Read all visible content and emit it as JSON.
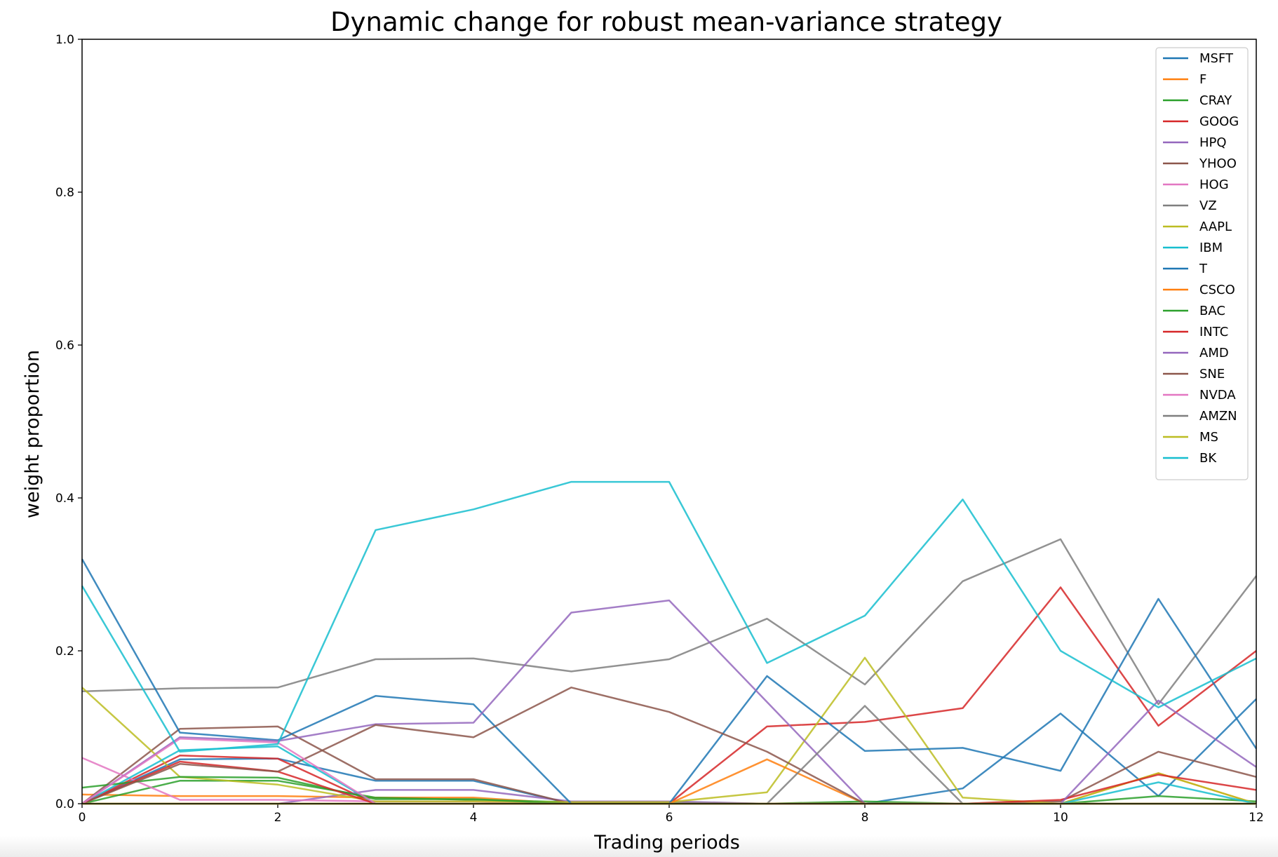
{
  "chart_data": {
    "type": "line",
    "title": "Dynamic change for robust mean-variance strategy",
    "xlabel": "Trading periods",
    "ylabel": "weight proportion",
    "xlim": [
      0,
      12
    ],
    "ylim": [
      0,
      1.0
    ],
    "xticks": [
      "0",
      "2",
      "4",
      "6",
      "8",
      "10",
      "12"
    ],
    "yticks": [
      "0.0",
      "0.2",
      "0.4",
      "0.6",
      "0.8",
      "1.0"
    ],
    "grid": false,
    "legend_position": "top-right",
    "x": [
      0,
      1,
      2,
      3,
      4,
      5,
      6,
      7,
      8,
      9,
      10,
      11,
      12
    ],
    "series": [
      {
        "name": "MSFT",
        "color": "#1f77b4",
        "values": [
          0.0,
          0.058,
          0.059,
          0.03,
          0.03,
          0.0,
          0.0,
          0.0,
          0.0,
          0.02,
          0.118,
          0.01,
          0.137
        ]
      },
      {
        "name": "F",
        "color": "#ff7f0e",
        "values": [
          0.012,
          0.01,
          0.01,
          0.008,
          0.008,
          0.0,
          0.0,
          0.0,
          0.0,
          0.0,
          0.0,
          0.04,
          0.0
        ]
      },
      {
        "name": "CRAY",
        "color": "#2ca02c",
        "values": [
          0.0,
          0.03,
          0.03,
          0.008,
          0.005,
          0.002,
          0.002,
          0.0,
          0.0,
          0.0,
          0.0,
          0.01,
          0.003
        ]
      },
      {
        "name": "GOOG",
        "color": "#d62728",
        "values": [
          0.0,
          0.063,
          0.059,
          0.0,
          0.0,
          0.0,
          0.0,
          0.101,
          0.107,
          0.125,
          0.283,
          0.102,
          0.2
        ]
      },
      {
        "name": "HPQ",
        "color": "#9467bd",
        "values": [
          0.0,
          0.0,
          0.0,
          0.018,
          0.018,
          0.003,
          0.003,
          0.0,
          0.0,
          0.0,
          0.0,
          0.0,
          0.0
        ]
      },
      {
        "name": "YHOO",
        "color": "#8c564b",
        "values": [
          0.0,
          0.098,
          0.101,
          0.032,
          0.032,
          0.0,
          0.0,
          0.0,
          0.0,
          0.0,
          0.003,
          0.068,
          0.035
        ]
      },
      {
        "name": "HOG",
        "color": "#e377c2",
        "values": [
          0.06,
          0.005,
          0.005,
          0.003,
          0.003,
          0.0,
          0.0,
          0.0,
          0.0,
          0.0,
          0.0,
          0.0,
          0.0
        ]
      },
      {
        "name": "VZ",
        "color": "#7f7f7f",
        "values": [
          0.147,
          0.151,
          0.152,
          0.189,
          0.19,
          0.173,
          0.189,
          0.242,
          0.156,
          0.291,
          0.346,
          0.13,
          0.298
        ]
      },
      {
        "name": "AAPL",
        "color": "#bcbd22",
        "values": [
          0.152,
          0.035,
          0.025,
          0.003,
          0.003,
          0.002,
          0.002,
          0.015,
          0.191,
          0.008,
          0.0,
          0.04,
          0.0
        ]
      },
      {
        "name": "IBM",
        "color": "#17becf",
        "values": [
          0.0,
          0.07,
          0.075,
          0.0,
          0.0,
          0.0,
          0.0,
          0.0,
          0.0,
          0.0,
          0.0,
          0.028,
          0.0
        ]
      },
      {
        "name": "T",
        "color": "#1f77b4",
        "values": [
          0.32,
          0.093,
          0.083,
          0.141,
          0.13,
          0.0,
          0.0,
          0.167,
          0.069,
          0.073,
          0.043,
          0.268,
          0.072
        ]
      },
      {
        "name": "CSCO",
        "color": "#ff7f0e",
        "values": [
          0.0,
          0.0,
          0.0,
          0.0,
          0.0,
          0.0,
          0.0,
          0.058,
          0.0,
          0.0,
          0.0,
          0.0,
          0.0
        ]
      },
      {
        "name": "BAC",
        "color": "#2ca02c",
        "values": [
          0.021,
          0.035,
          0.034,
          0.006,
          0.006,
          0.0,
          0.0,
          0.0,
          0.003,
          0.0,
          0.0,
          0.0,
          0.0
        ]
      },
      {
        "name": "INTC",
        "color": "#d62728",
        "values": [
          0.0,
          0.055,
          0.042,
          0.0,
          0.0,
          0.0,
          0.0,
          0.0,
          0.0,
          0.0,
          0.005,
          0.038,
          0.018
        ]
      },
      {
        "name": "AMD",
        "color": "#9467bd",
        "values": [
          0.0,
          0.087,
          0.082,
          0.104,
          0.106,
          0.25,
          0.266,
          0.133,
          0.0,
          0.0,
          0.0,
          0.135,
          0.048
        ]
      },
      {
        "name": "SNE",
        "color": "#8c564b",
        "values": [
          0.0,
          0.052,
          0.042,
          0.103,
          0.087,
          0.152,
          0.12,
          0.068,
          0.0,
          0.0,
          0.0,
          0.0,
          0.0
        ]
      },
      {
        "name": "NVDA",
        "color": "#e377c2",
        "values": [
          0.0,
          0.085,
          0.08,
          0.0,
          0.0,
          0.0,
          0.0,
          0.0,
          0.0,
          0.0,
          0.0,
          0.0,
          0.0
        ]
      },
      {
        "name": "AMZN",
        "color": "#7f7f7f",
        "values": [
          0.0,
          0.0,
          0.0,
          0.0,
          0.0,
          0.0,
          0.0,
          0.0,
          0.128,
          0.0,
          0.0,
          0.0,
          0.0
        ]
      },
      {
        "name": "MS",
        "color": "#bcbd22",
        "values": [
          0.0,
          0.0,
          0.0,
          0.0,
          0.0,
          0.0,
          0.0,
          0.0,
          0.0,
          0.0,
          0.0,
          0.0,
          0.0
        ]
      },
      {
        "name": "BK",
        "color": "#17becf",
        "values": [
          0.285,
          0.068,
          0.078,
          0.358,
          0.385,
          0.421,
          0.421,
          0.184,
          0.246,
          0.398,
          0.2,
          0.126,
          0.19
        ]
      }
    ]
  }
}
